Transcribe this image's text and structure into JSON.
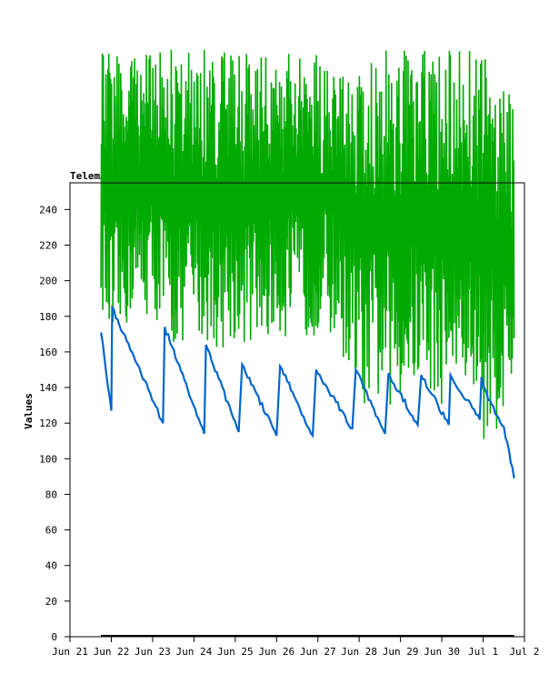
{
  "chart_data": {
    "type": "line",
    "title": "Telem…",
    "ylabel": "Values",
    "xlabel": "",
    "ylim": [
      0,
      255
    ],
    "y_ticks": [
      0,
      20,
      40,
      60,
      80,
      100,
      120,
      140,
      160,
      180,
      200,
      220,
      240
    ],
    "x_range": [
      "2024-06-21",
      "2024-07-02"
    ],
    "x_ticks": [
      {
        "date": "2024-06-21",
        "label": "Jun 21"
      },
      {
        "date": "2024-06-22",
        "label": "Jun 22"
      },
      {
        "date": "2024-06-23",
        "label": "Jun 23"
      },
      {
        "date": "2024-06-24",
        "label": "Jun 24"
      },
      {
        "date": "2024-06-25",
        "label": "Jun 25"
      },
      {
        "date": "2024-06-26",
        "label": "Jun 26"
      },
      {
        "date": "2024-06-27",
        "label": "Jun 27"
      },
      {
        "date": "2024-06-28",
        "label": "Jun 28"
      },
      {
        "date": "2024-06-29",
        "label": "Jun 29"
      },
      {
        "date": "2024-06-30",
        "label": "Jun 30"
      },
      {
        "date": "2024-07-01",
        "label": "Jul 1"
      },
      {
        "date": "2024-07-02",
        "label": "Jul 2"
      }
    ],
    "grid": false,
    "legend": "none",
    "series": [
      {
        "color": "#00aa00",
        "style": "oscillating",
        "x": [
          "2024-06-21 18:00",
          "2024-06-22 00:00",
          "2024-06-22 12:00",
          "2024-06-23 00:00",
          "2024-06-23 12:00",
          "2024-06-24 00:00",
          "2024-06-24 12:00",
          "2024-06-25 00:00",
          "2024-06-25 12:00",
          "2024-06-26 00:00",
          "2024-06-26 12:00",
          "2024-06-27 00:00",
          "2024-06-27 12:00",
          "2024-06-28 00:00",
          "2024-06-28 12:00",
          "2024-06-29 00:00",
          "2024-06-29 12:00",
          "2024-06-30 00:00",
          "2024-06-30 12:00",
          "2024-07-01 00:00",
          "2024-07-01 12:00",
          "2024-07-01 18:00"
        ],
        "min": [
          190,
          150,
          180,
          180,
          160,
          170,
          160,
          165,
          160,
          170,
          165,
          170,
          165,
          130,
          130,
          130,
          140,
          130,
          140,
          110,
          120,
          140
        ],
        "max": [
          330,
          330,
          330,
          330,
          330,
          330,
          330,
          330,
          330,
          330,
          330,
          330,
          330,
          330,
          330,
          330,
          330,
          330,
          330,
          330,
          320,
          300
        ]
      },
      {
        "color": "#0066cc",
        "style": "sawtooth",
        "points": [
          {
            "x": "2024-06-21 18:00",
            "y": 171
          },
          {
            "x": "2024-06-22 00:00",
            "y": 127
          },
          {
            "x": "2024-06-22 00:30",
            "y": 185
          },
          {
            "x": "2024-06-23 06:00",
            "y": 120
          },
          {
            "x": "2024-06-23 07:00",
            "y": 174
          },
          {
            "x": "2024-06-24 06:00",
            "y": 114
          },
          {
            "x": "2024-06-24 07:00",
            "y": 164
          },
          {
            "x": "2024-06-25 02:00",
            "y": 115
          },
          {
            "x": "2024-06-25 04:00",
            "y": 153
          },
          {
            "x": "2024-06-26 00:00",
            "y": 113
          },
          {
            "x": "2024-06-26 02:00",
            "y": 152
          },
          {
            "x": "2024-06-26 21:00",
            "y": 113
          },
          {
            "x": "2024-06-26 23:00",
            "y": 150
          },
          {
            "x": "2024-06-27 20:00",
            "y": 117
          },
          {
            "x": "2024-06-27 22:00",
            "y": 150
          },
          {
            "x": "2024-06-28 15:00",
            "y": 114
          },
          {
            "x": "2024-06-28 17:00",
            "y": 148
          },
          {
            "x": "2024-06-29 10:00",
            "y": 119
          },
          {
            "x": "2024-06-29 12:00",
            "y": 147
          },
          {
            "x": "2024-06-30 04:00",
            "y": 119
          },
          {
            "x": "2024-06-30 05:00",
            "y": 147
          },
          {
            "x": "2024-06-30 22:00",
            "y": 122
          },
          {
            "x": "2024-06-30 23:00",
            "y": 146
          },
          {
            "x": "2024-07-01 03:00",
            "y": 133
          },
          {
            "x": "2024-07-01 12:00",
            "y": 118
          },
          {
            "x": "2024-07-01 18:00",
            "y": 89
          }
        ]
      },
      {
        "color": "#000000",
        "style": "baseline",
        "points": [
          {
            "x": "2024-06-21 18:00",
            "y": 0
          },
          {
            "x": "2024-07-01 18:00",
            "y": 0
          }
        ]
      }
    ]
  }
}
